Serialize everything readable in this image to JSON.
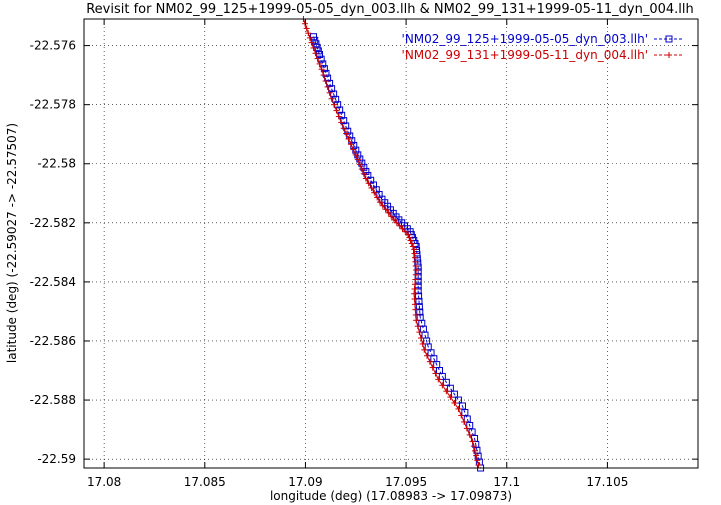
{
  "chart_data": {
    "type": "line",
    "title": "Revisit for NM02_99_125+1999-05-05_dyn_003.llh & NM02_99_131+1999-05-11_dyn_004.llh",
    "xlabel": "longitude (deg) (17.08983 -> 17.09873)",
    "ylabel": "latitude (deg) (-22.59027 -> -22.57507)",
    "xlim": [
      17.079,
      17.1095
    ],
    "ylim": [
      -22.5903,
      -22.5751
    ],
    "xticks": [
      {
        "value": 17.08,
        "label": "17.08"
      },
      {
        "value": 17.085,
        "label": "17.085"
      },
      {
        "value": 17.09,
        "label": "17.09"
      },
      {
        "value": 17.095,
        "label": "17.095"
      },
      {
        "value": 17.1,
        "label": "17.1"
      },
      {
        "value": 17.105,
        "label": "17.105"
      }
    ],
    "yticks": [
      {
        "value": -22.576,
        "label": "-22.576"
      },
      {
        "value": -22.578,
        "label": "-22.578"
      },
      {
        "value": -22.58,
        "label": "-22.58"
      },
      {
        "value": -22.582,
        "label": "-22.582"
      },
      {
        "value": -22.584,
        "label": "-22.584"
      },
      {
        "value": -22.586,
        "label": "-22.586"
      },
      {
        "value": -22.588,
        "label": "-22.588"
      },
      {
        "value": -22.59,
        "label": "-22.59"
      }
    ],
    "grid": true,
    "legend_position": "top-right",
    "series": [
      {
        "name": "'NM02_99_125+1999-05-05_dyn_003.llh'",
        "color": "#0000cc",
        "marker": "square",
        "x": [
          17.0904,
          17.0907,
          17.0911,
          17.0916,
          17.0921,
          17.0926,
          17.0931,
          17.0938,
          17.0945,
          17.0952,
          17.0955,
          17.0956,
          17.0956,
          17.0957,
          17.0961,
          17.0968,
          17.0978,
          17.0984,
          17.0987
        ],
        "y": [
          -22.5757,
          -22.5763,
          -22.5771,
          -22.578,
          -22.5789,
          -22.5797,
          -22.5804,
          -22.5812,
          -22.5818,
          -22.5823,
          -22.5828,
          -22.5835,
          -22.5843,
          -22.5852,
          -22.5862,
          -22.5872,
          -22.5882,
          -22.5893,
          -22.5903
        ]
      },
      {
        "name": "'NM02_99_131+1999-05-11_dyn_004.llh'",
        "color": "#cc0000",
        "marker": "plus",
        "x": [
          17.0899,
          17.0903,
          17.0908,
          17.0913,
          17.0919,
          17.0925,
          17.093,
          17.0937,
          17.0944,
          17.0951,
          17.0954,
          17.0955,
          17.0954,
          17.0955,
          17.0959,
          17.0966,
          17.0976,
          17.0983,
          17.0986
        ],
        "y": [
          -22.5751,
          -22.5759,
          -22.5768,
          -22.5778,
          -22.5788,
          -22.5797,
          -22.5805,
          -22.5813,
          -22.5819,
          -22.5824,
          -22.5829,
          -22.5836,
          -22.5844,
          -22.5853,
          -22.5863,
          -22.5873,
          -22.5883,
          -22.5894,
          -22.5902
        ]
      }
    ]
  }
}
